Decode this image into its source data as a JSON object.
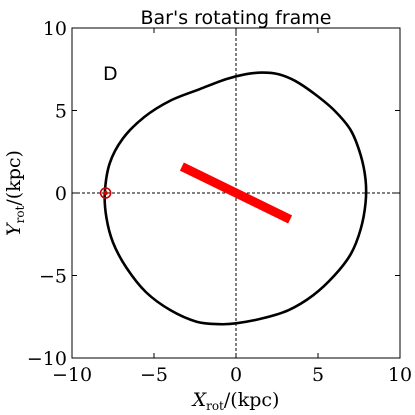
{
  "chart_data": {
    "type": "line",
    "title": "Bar's rotating frame",
    "panel_label": "D",
    "xlabel_main": "X",
    "xlabel_sub": "rot",
    "xlabel_unit": "/(kpc)",
    "ylabel_main": "Y",
    "ylabel_sub": "rot",
    "ylabel_unit": "/(kpc)",
    "xlim": [
      -10,
      10
    ],
    "ylim": [
      -10,
      10
    ],
    "xticks": [
      -10,
      -5,
      0,
      5,
      10
    ],
    "yticks": [
      -10,
      -5,
      0,
      5,
      10
    ],
    "xtick_labels": [
      "−10",
      "−5",
      "0",
      "5",
      "10"
    ],
    "ytick_labels": [
      "−10",
      "−5",
      "0",
      "5",
      "10"
    ],
    "reference_lines": {
      "x": 0,
      "y": 0,
      "style": "dashed"
    },
    "orbit": {
      "color": "#000000",
      "points": [
        [
          -8.0,
          0.0
        ],
        [
          -7.7,
          1.8
        ],
        [
          -6.9,
          3.3
        ],
        [
          -5.6,
          4.6
        ],
        [
          -4.0,
          5.6
        ],
        [
          -2.2,
          6.3
        ],
        [
          -0.6,
          6.9
        ],
        [
          0.6,
          7.2
        ],
        [
          1.6,
          7.3
        ],
        [
          2.6,
          7.2
        ],
        [
          3.6,
          6.8
        ],
        [
          4.8,
          6.0
        ],
        [
          6.0,
          5.0
        ],
        [
          7.0,
          3.8
        ],
        [
          7.6,
          2.3
        ],
        [
          7.9,
          0.8
        ],
        [
          7.9,
          -0.6
        ],
        [
          7.6,
          -2.2
        ],
        [
          7.0,
          -3.7
        ],
        [
          6.0,
          -5.0
        ],
        [
          4.7,
          -6.2
        ],
        [
          3.2,
          -7.1
        ],
        [
          1.6,
          -7.6
        ],
        [
          0.0,
          -7.9
        ],
        [
          -1.0,
          -7.95
        ],
        [
          -2.4,
          -7.8
        ],
        [
          -4.0,
          -7.1
        ],
        [
          -5.5,
          -6.0
        ],
        [
          -6.7,
          -4.5
        ],
        [
          -7.5,
          -3.0
        ],
        [
          -7.9,
          -1.5
        ],
        [
          -8.0,
          0.0
        ]
      ]
    },
    "bar": {
      "color": "#ff0000",
      "start": [
        -3.3,
        1.6
      ],
      "end": [
        3.3,
        -1.6
      ]
    },
    "start_marker": {
      "x": -7.95,
      "y": 0.0,
      "color": "#cc0000"
    }
  }
}
